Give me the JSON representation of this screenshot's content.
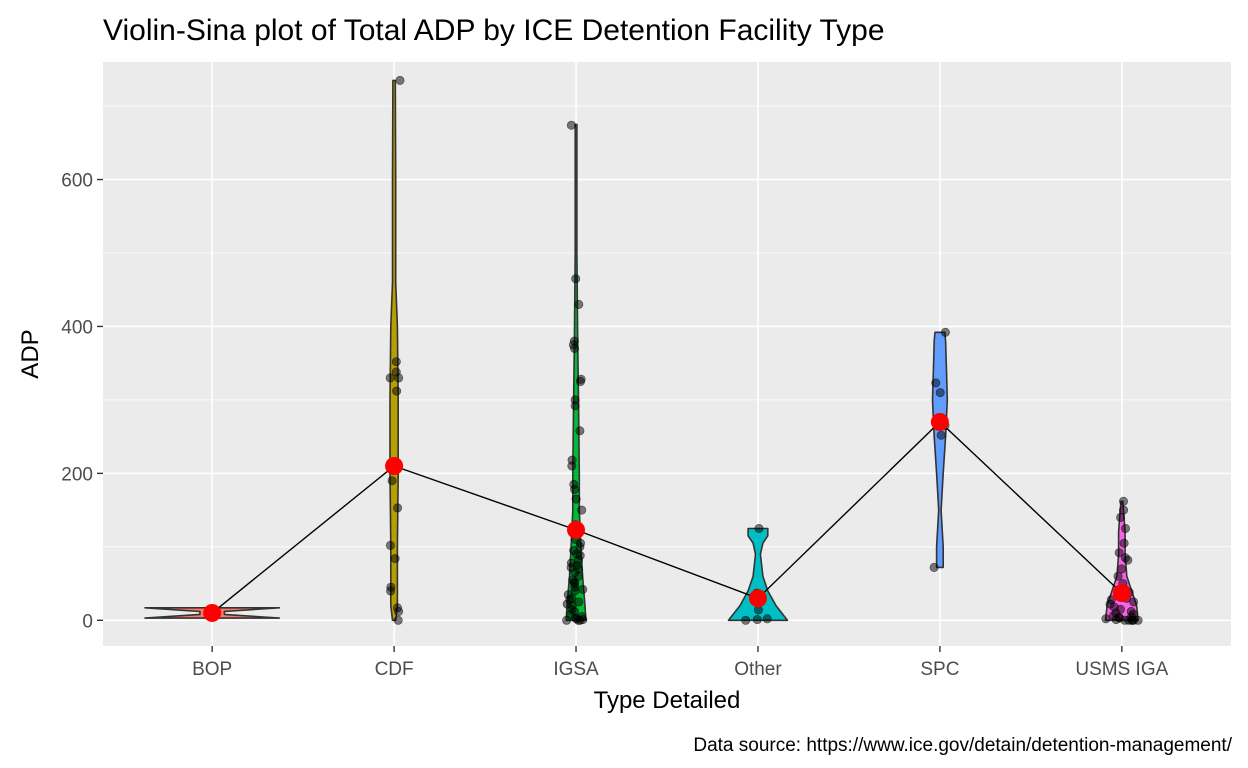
{
  "chart_data": {
    "type": "violin",
    "title": "Violin-Sina plot of Total ADP by ICE Detention Facility Type",
    "xlabel": "Type Detailed",
    "ylabel": "ADP",
    "caption": "Data source: https://www.ice.gov/detain/detention-management/",
    "categories": [
      "BOP",
      "CDF",
      "IGSA",
      "Other",
      "SPC",
      "USMS IGA"
    ],
    "colors": [
      "#F8766D",
      "#B79F00",
      "#00BA38",
      "#00BFC4",
      "#619CFF",
      "#F564E3"
    ],
    "ylim": [
      -35,
      760
    ],
    "yticks": [
      0,
      200,
      400,
      600
    ],
    "grid": true,
    "background": "#EBEBEB",
    "mean_line_color": "#000000",
    "mean_point_color": "#FF0000",
    "means": [
      10,
      210,
      123,
      30,
      270,
      37
    ],
    "violins": [
      {
        "category": "BOP",
        "profile": [
          [
            3,
            0.82
          ],
          [
            8,
            0.15
          ],
          [
            12,
            0.15
          ],
          [
            17,
            0.82
          ]
        ]
      },
      {
        "category": "CDF",
        "profile": [
          [
            0,
            0.02
          ],
          [
            20,
            0.04
          ],
          [
            40,
            0.04
          ],
          [
            100,
            0.04
          ],
          [
            200,
            0.05
          ],
          [
            300,
            0.05
          ],
          [
            400,
            0.04
          ],
          [
            460,
            0.02
          ],
          [
            600,
            0.02
          ],
          [
            735,
            0.015
          ]
        ]
      },
      {
        "category": "IGSA",
        "profile": [
          [
            0,
            0.12
          ],
          [
            20,
            0.11
          ],
          [
            60,
            0.08
          ],
          [
            100,
            0.06
          ],
          [
            150,
            0.04
          ],
          [
            200,
            0.04
          ],
          [
            300,
            0.03
          ],
          [
            380,
            0.02
          ],
          [
            500,
            0.01
          ],
          [
            675,
            0.01
          ]
        ]
      },
      {
        "category": "Other",
        "profile": [
          [
            0,
            0.36
          ],
          [
            20,
            0.22
          ],
          [
            40,
            0.12
          ],
          [
            60,
            0.06
          ],
          [
            90,
            0.03
          ],
          [
            105,
            0.06
          ],
          [
            115,
            0.12
          ],
          [
            125,
            0.12
          ]
        ]
      },
      {
        "category": "SPC",
        "profile": [
          [
            72,
            0.04
          ],
          [
            100,
            0.04
          ],
          [
            150,
            0.015
          ],
          [
            200,
            0.04
          ],
          [
            250,
            0.07
          ],
          [
            300,
            0.09
          ],
          [
            340,
            0.08
          ],
          [
            380,
            0.07
          ],
          [
            392,
            0.06
          ]
        ]
      },
      {
        "category": "USMS IGA",
        "profile": [
          [
            0,
            0.2
          ],
          [
            20,
            0.18
          ],
          [
            40,
            0.12
          ],
          [
            60,
            0.06
          ],
          [
            90,
            0.04
          ],
          [
            120,
            0.04
          ],
          [
            150,
            0.02
          ],
          [
            162,
            0.01
          ]
        ]
      }
    ],
    "points": [
      {
        "category": "BOP",
        "values": [
          10,
          8,
          12
        ]
      },
      {
        "category": "CDF",
        "values": [
          735,
          352,
          338,
          330,
          330,
          312,
          213,
          208,
          190,
          153,
          102,
          84,
          45,
          40,
          17,
          12,
          0
        ]
      },
      {
        "category": "IGSA",
        "values": [
          674,
          465,
          430,
          380,
          375,
          370,
          328,
          325,
          300,
          292,
          258,
          218,
          210,
          185,
          178,
          165,
          150,
          130,
          125,
          120,
          110,
          105,
          100,
          95,
          90,
          88,
          82,
          78,
          75,
          72,
          70,
          65,
          60,
          55,
          52,
          50,
          45,
          42,
          40,
          35,
          30,
          28,
          25,
          22,
          20,
          15,
          12,
          8,
          5,
          3,
          2,
          1,
          0,
          0,
          0
        ]
      },
      {
        "category": "Other",
        "values": [
          125,
          37,
          14,
          2,
          0,
          1
        ]
      },
      {
        "category": "SPC",
        "values": [
          392,
          323,
          310,
          265,
          252,
          72
        ]
      },
      {
        "category": "USMS IGA",
        "values": [
          162,
          150,
          140,
          125,
          105,
          92,
          85,
          82,
          70,
          60,
          50,
          42,
          38,
          35,
          30,
          28,
          25,
          22,
          18,
          15,
          12,
          10,
          8,
          6,
          5,
          4,
          3,
          2,
          1,
          0,
          0,
          0,
          0,
          0,
          0
        ]
      }
    ]
  }
}
